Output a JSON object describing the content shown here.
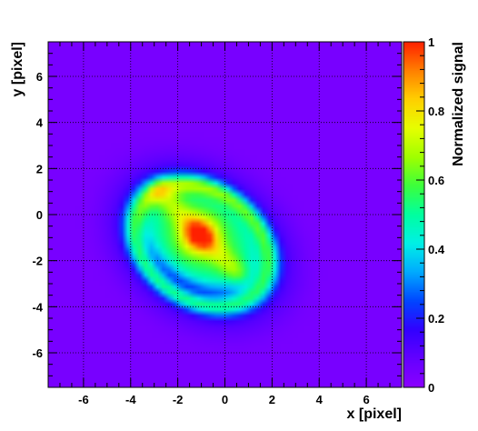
{
  "chart_data": {
    "type": "heatmap",
    "title": "",
    "xlabel": "x [pixel]",
    "ylabel": "y [pixel]",
    "colorbar_label": "Normalized signal",
    "xlim": [
      -7.5,
      7.5
    ],
    "ylim": [
      -7.5,
      7.5
    ],
    "x_ticks": [
      -6,
      -4,
      -2,
      0,
      2,
      4,
      6
    ],
    "y_ticks": [
      -6,
      -4,
      -2,
      0,
      2,
      4,
      6
    ],
    "colorbar_range": [
      0,
      1
    ],
    "colorbar_ticks": [
      0,
      0.2,
      0.4,
      0.6,
      0.8,
      1
    ],
    "grid": true,
    "background_value": 0.04,
    "features": {
      "ring": {
        "center": [
          -1.0,
          -1.3
        ],
        "radius_x": 3.8,
        "radius_y": 2.9,
        "rotation_deg": -38,
        "peak_value": 0.45
      },
      "inner_plateau": {
        "center": [
          -1.0,
          -1.0
        ],
        "radius_x": 2.8,
        "radius_y": 2.0,
        "rotation_deg": -38,
        "value": 0.5
      },
      "diagonal_ridge": {
        "from": [
          -2.8,
          1.0
        ],
        "to": [
          0.6,
          -2.6
        ],
        "width": 0.8,
        "value": 0.62
      },
      "peak": {
        "center": [
          -1.1,
          -0.9
        ],
        "sigma": 0.55,
        "value": 1.0
      }
    },
    "colormap": [
      "#8b00ff",
      "#6400ff",
      "#3200ff",
      "#0046ff",
      "#00aaff",
      "#00f0e6",
      "#00ffa0",
      "#3cff3c",
      "#a0ff00",
      "#e6ff00",
      "#ffd000",
      "#ff8000",
      "#ff2000"
    ]
  }
}
